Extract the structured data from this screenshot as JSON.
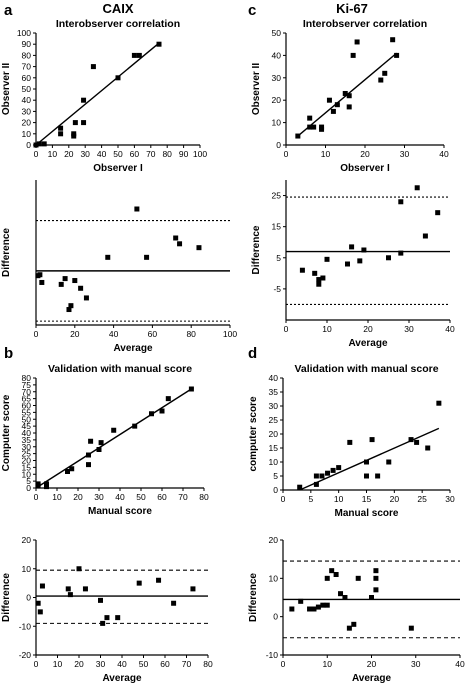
{
  "figure": {
    "columns": [
      "CAIX",
      "Ki-67"
    ],
    "panel_letters": [
      "a",
      "c",
      "b",
      "d"
    ]
  },
  "chart_data": [
    {
      "id": "a_top",
      "type": "scatter",
      "title": "Interobserver correlation",
      "xlabel": "Observer I",
      "ylabel": "Observer II",
      "xlim": [
        0,
        100
      ],
      "ylim": [
        0,
        100
      ],
      "xticks": [
        0,
        10,
        20,
        30,
        40,
        50,
        60,
        70,
        80,
        90,
        100
      ],
      "yticks": [
        0,
        10,
        20,
        30,
        40,
        50,
        60,
        70,
        80,
        90,
        100
      ],
      "points": [
        [
          0,
          0
        ],
        [
          2,
          1
        ],
        [
          5,
          1
        ],
        [
          15,
          10
        ],
        [
          15,
          15
        ],
        [
          23,
          10
        ],
        [
          23,
          8
        ],
        [
          24,
          20
        ],
        [
          29,
          20
        ],
        [
          29,
          40
        ],
        [
          35,
          70
        ],
        [
          50,
          60
        ],
        [
          60,
          80
        ],
        [
          63,
          80
        ],
        [
          75,
          90
        ]
      ],
      "fit_line": [
        [
          0,
          0
        ],
        [
          75,
          91
        ]
      ]
    },
    {
      "id": "a_bottom",
      "type": "scatter",
      "title": "",
      "xlabel": "Average",
      "ylabel": "Difference",
      "xlim": [
        0,
        100
      ],
      "ylim": [
        -25,
        50
      ],
      "xticks": [
        0,
        20,
        40,
        60,
        80,
        100
      ],
      "points": [
        [
          1,
          0.5
        ],
        [
          2,
          1
        ],
        [
          3,
          -3
        ],
        [
          13,
          -4
        ],
        [
          15,
          -1
        ],
        [
          17,
          -17
        ],
        [
          18,
          -15
        ],
        [
          20,
          -2
        ],
        [
          23,
          -6
        ],
        [
          26,
          -11
        ],
        [
          37,
          10
        ],
        [
          52,
          35
        ],
        [
          57,
          10
        ],
        [
          72,
          20
        ],
        [
          74,
          17
        ],
        [
          84,
          15
        ]
      ],
      "hlines": [
        {
          "y": 3,
          "style": "solid"
        },
        {
          "y": 29,
          "style": "dotted"
        },
        {
          "y": -23,
          "style": "dotted"
        }
      ]
    },
    {
      "id": "c_top",
      "type": "scatter",
      "title": "Interobserver correlation",
      "xlabel": "Observer I",
      "ylabel": "Observer II",
      "xlim": [
        0,
        40
      ],
      "ylim": [
        0,
        50
      ],
      "xticks": [
        0,
        10,
        20,
        30,
        40
      ],
      "yticks": [
        0,
        10,
        20,
        30,
        40,
        50
      ],
      "points": [
        [
          3,
          4
        ],
        [
          6,
          8
        ],
        [
          6,
          12
        ],
        [
          7,
          8
        ],
        [
          9,
          8
        ],
        [
          9,
          7
        ],
        [
          11,
          20
        ],
        [
          12,
          15
        ],
        [
          13,
          18
        ],
        [
          15,
          23
        ],
        [
          16,
          22
        ],
        [
          16,
          17
        ],
        [
          17,
          40
        ],
        [
          18,
          46
        ],
        [
          24,
          29
        ],
        [
          25,
          32
        ],
        [
          27,
          47
        ],
        [
          28,
          40
        ]
      ],
      "fit_line": [
        [
          3,
          4
        ],
        [
          28,
          41
        ]
      ]
    },
    {
      "id": "c_bottom",
      "type": "scatter",
      "title": "",
      "xlabel": "Average",
      "ylabel": "Difference",
      "xlim": [
        0,
        40
      ],
      "ylim": [
        -15,
        30
      ],
      "xticks": [
        0,
        10,
        20,
        30,
        40
      ],
      "yticks": [
        -5,
        5,
        15,
        25
      ],
      "ytick_labels": [
        "-5",
        "5",
        "15",
        "25"
      ],
      "points": [
        [
          4,
          1
        ],
        [
          7,
          0
        ],
        [
          8,
          -2
        ],
        [
          8,
          -3.5
        ],
        [
          9,
          -1.5
        ],
        [
          10,
          4.5
        ],
        [
          15,
          3
        ],
        [
          16,
          8.5
        ],
        [
          18,
          4
        ],
        [
          19,
          7.5
        ],
        [
          25,
          5
        ],
        [
          28,
          23
        ],
        [
          28,
          6.5
        ],
        [
          32,
          27.5
        ],
        [
          34,
          12
        ],
        [
          37,
          19.5
        ]
      ],
      "hlines": [
        {
          "y": 7,
          "style": "solid"
        },
        {
          "y": 24.5,
          "style": "dotted"
        },
        {
          "y": -10,
          "style": "dotted"
        }
      ]
    },
    {
      "id": "b_top",
      "type": "scatter",
      "title": "Validation with manual score",
      "xlabel": "Manual score",
      "ylabel": "Computer score",
      "xlim": [
        0,
        80
      ],
      "ylim": [
        0,
        80
      ],
      "xticks": [
        0,
        10,
        20,
        30,
        40,
        50,
        60,
        70,
        80
      ],
      "yticks": [
        0,
        5,
        10,
        15,
        20,
        25,
        30,
        35,
        40,
        45,
        50,
        55,
        60,
        65,
        70,
        75,
        80
      ],
      "points": [
        [
          1,
          2
        ],
        [
          1,
          3
        ],
        [
          5,
          1
        ],
        [
          5,
          3
        ],
        [
          15,
          12
        ],
        [
          17,
          14
        ],
        [
          25,
          17
        ],
        [
          25,
          24
        ],
        [
          26,
          34
        ],
        [
          30,
          28
        ],
        [
          31,
          33
        ],
        [
          37,
          42
        ],
        [
          47,
          45
        ],
        [
          55,
          54
        ],
        [
          60,
          56
        ],
        [
          63,
          65
        ],
        [
          74,
          72
        ]
      ],
      "fit_line": [
        [
          0,
          0
        ],
        [
          75,
          73
        ]
      ]
    },
    {
      "id": "b_bottom",
      "type": "scatter",
      "title": "",
      "xlabel": "Average",
      "ylabel": "Difference",
      "xlim": [
        0,
        80
      ],
      "ylim": [
        -20,
        20
      ],
      "xticks": [
        0,
        10,
        20,
        30,
        40,
        50,
        60,
        70,
        80
      ],
      "yticks": [
        -20,
        -10,
        0,
        10,
        20
      ],
      "points": [
        [
          1,
          -2
        ],
        [
          2,
          -5
        ],
        [
          3,
          4
        ],
        [
          15,
          3
        ],
        [
          16,
          1
        ],
        [
          20,
          10
        ],
        [
          23,
          3
        ],
        [
          30,
          -1
        ],
        [
          31,
          -9
        ],
        [
          33,
          -7
        ],
        [
          38,
          -7
        ],
        [
          48,
          5
        ],
        [
          57,
          6
        ],
        [
          64,
          -2
        ],
        [
          73,
          3
        ]
      ],
      "hlines": [
        {
          "y": 0.5,
          "style": "solid"
        },
        {
          "y": 9.5,
          "style": "dashed"
        },
        {
          "y": -9,
          "style": "dashed"
        }
      ]
    },
    {
      "id": "d_top",
      "type": "scatter",
      "title": "Validation with manual score",
      "xlabel": "Manual score",
      "ylabel": "computer score",
      "xlim": [
        0,
        30
      ],
      "ylim": [
        0,
        40
      ],
      "xticks": [
        0,
        5,
        10,
        15,
        20,
        25,
        30
      ],
      "yticks": [
        0,
        5,
        10,
        15,
        20,
        25,
        30,
        35,
        40
      ],
      "points": [
        [
          3,
          1
        ],
        [
          6,
          2
        ],
        [
          6,
          5
        ],
        [
          7,
          5
        ],
        [
          8,
          6
        ],
        [
          9,
          7
        ],
        [
          10,
          8
        ],
        [
          12,
          17
        ],
        [
          15,
          10
        ],
        [
          15,
          5
        ],
        [
          16,
          18
        ],
        [
          17,
          5
        ],
        [
          19,
          10
        ],
        [
          23,
          18
        ],
        [
          24,
          17
        ],
        [
          26,
          15
        ],
        [
          28,
          31
        ]
      ],
      "fit_line": [
        [
          3,
          0
        ],
        [
          28,
          22
        ]
      ]
    },
    {
      "id": "d_bottom",
      "type": "scatter",
      "title": "",
      "xlabel": "Average",
      "ylabel": "Difference",
      "xlim": [
        0,
        40
      ],
      "ylim": [
        -10,
        20
      ],
      "xticks": [
        0,
        10,
        20,
        30,
        40
      ],
      "yticks": [
        -10,
        0,
        10,
        20
      ],
      "points": [
        [
          2,
          2
        ],
        [
          4,
          4
        ],
        [
          6,
          2
        ],
        [
          7,
          2
        ],
        [
          8,
          2.5
        ],
        [
          9,
          3
        ],
        [
          10,
          3
        ],
        [
          10,
          10
        ],
        [
          11,
          12
        ],
        [
          12,
          11
        ],
        [
          13,
          6
        ],
        [
          14,
          5
        ],
        [
          15,
          -3
        ],
        [
          16,
          -2
        ],
        [
          17,
          10
        ],
        [
          20,
          5
        ],
        [
          21,
          12
        ],
        [
          21,
          7
        ],
        [
          21,
          10
        ],
        [
          29,
          -3
        ]
      ],
      "hlines": [
        {
          "y": 4.5,
          "style": "solid"
        },
        {
          "y": 14.5,
          "style": "dashed"
        },
        {
          "y": -5.5,
          "style": "dashed"
        }
      ]
    }
  ]
}
